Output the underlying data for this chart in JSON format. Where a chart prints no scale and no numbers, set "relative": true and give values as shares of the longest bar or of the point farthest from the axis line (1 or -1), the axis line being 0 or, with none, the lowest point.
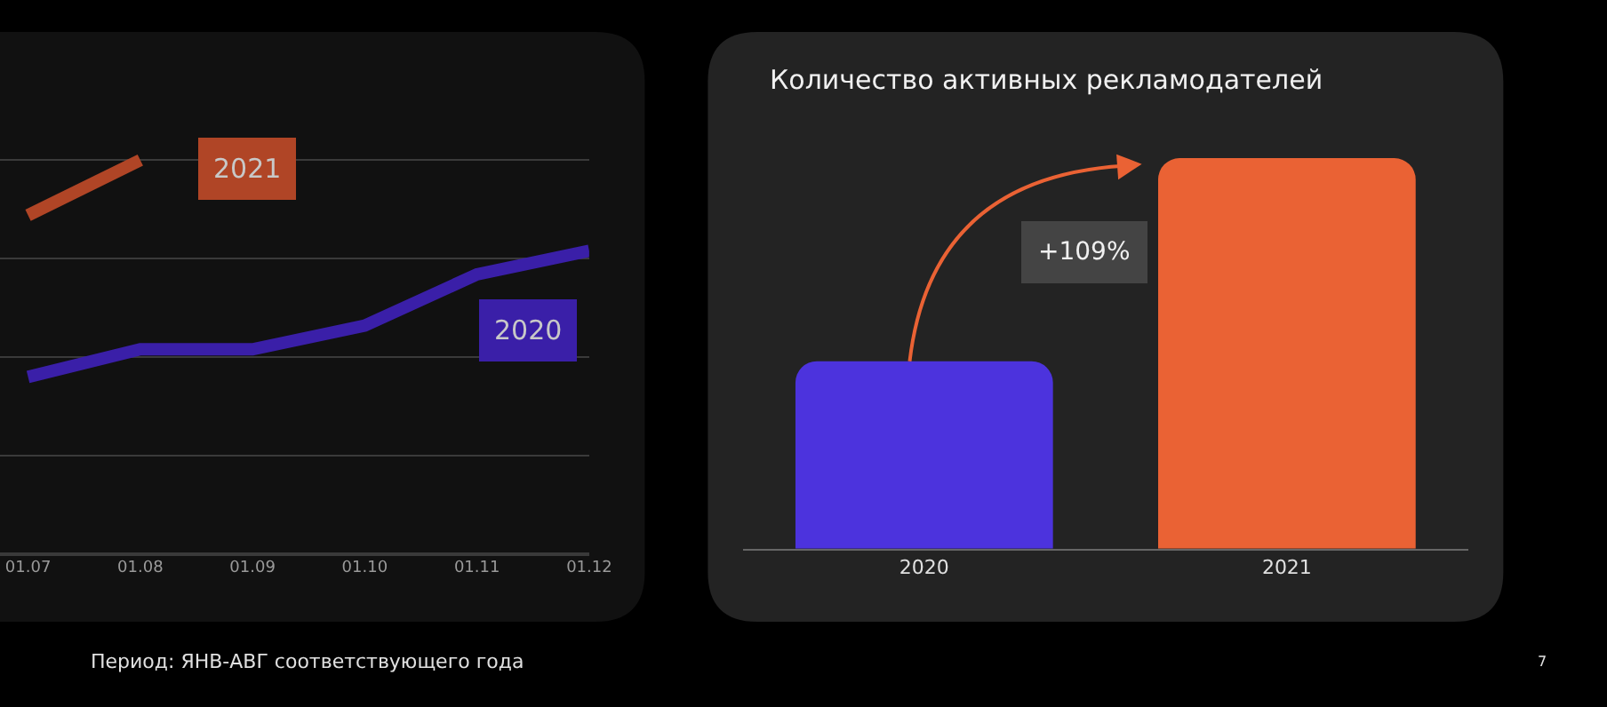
{
  "chart_data": [
    {
      "type": "line",
      "categories": [
        "01.07",
        "01.08",
        "01.09",
        "01.10",
        "01.11",
        "01.12"
      ],
      "relative": true,
      "grid": "y",
      "line_style": "solid",
      "series": [
        {
          "name": "2020",
          "color": "#3a1fa8",
          "values": [
            0.45,
            0.52,
            0.52,
            0.58,
            0.71,
            0.77
          ]
        },
        {
          "name": "2021",
          "color": "#b04526",
          "values": [
            0.86,
            1.0,
            null,
            null,
            null,
            null
          ]
        }
      ]
    },
    {
      "type": "bar",
      "title": "Количество активных рекламодателей",
      "categories": [
        "2020",
        "2021"
      ],
      "values": [
        0.48,
        1
      ],
      "colors": [
        "#4c33dd",
        "#ea6234"
      ],
      "relative": true,
      "annotations": [
        "+109%",
        "Период: ЯНВ-АВГ соответствующего года",
        "7"
      ]
    }
  ]
}
